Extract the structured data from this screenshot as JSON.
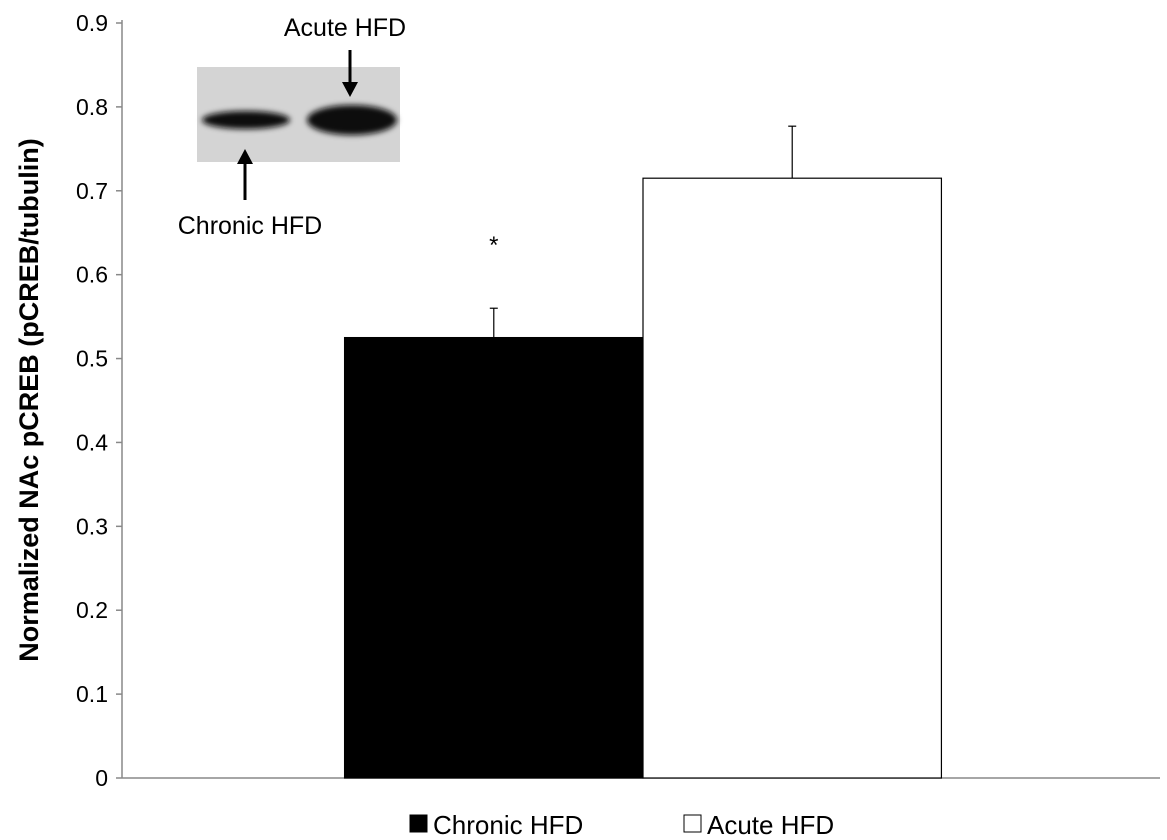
{
  "chart_data": {
    "type": "bar",
    "y_label": "Normalized NAc pCREB (pCREB/tubulin)",
    "categories": [
      null
    ],
    "series": [
      {
        "name": "Chronic HFD",
        "color": "#000000",
        "values": [
          0.525
        ],
        "errors": [
          0.035
        ]
      },
      {
        "name": "Acute HFD",
        "color": "#ffffff",
        "values": [
          0.715
        ],
        "errors": [
          0.062
        ]
      }
    ],
    "ylim": [
      0,
      0.9
    ],
    "yticks": [
      0,
      0.1,
      0.2,
      0.3,
      0.4,
      0.5,
      0.6,
      0.7,
      0.8,
      0.9
    ],
    "grid": false,
    "legend": "bottom",
    "significance_marker": "*",
    "inset_labels": [
      "Acute HFD",
      "Chronic HFD"
    ]
  }
}
